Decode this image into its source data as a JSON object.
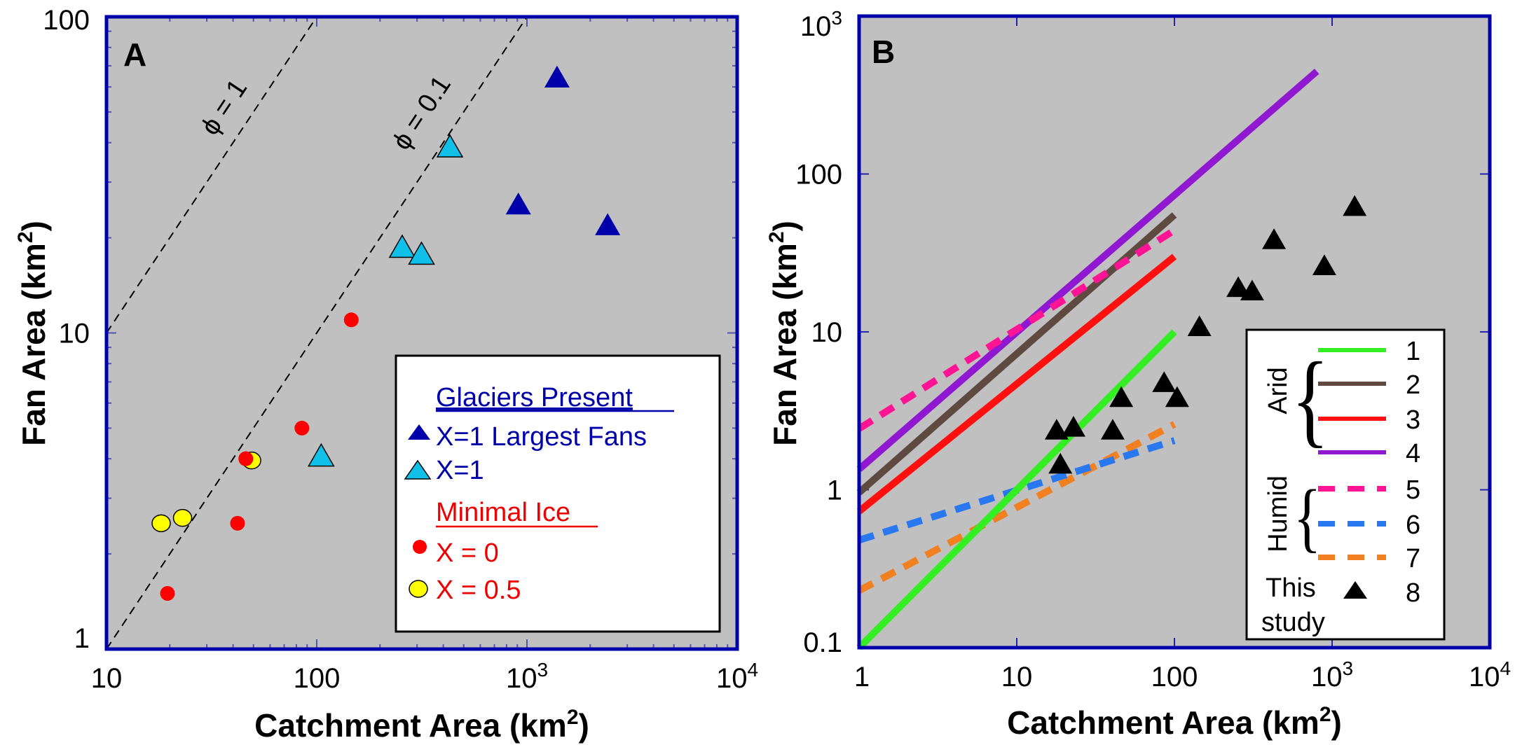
{
  "figure": {
    "panels": [
      "A",
      "B"
    ]
  },
  "chart_data": [
    {
      "panel": "A",
      "type": "scatter",
      "title": "",
      "panel_label": "A",
      "xlabel": "Catchment Area (km",
      "xlabel_sup": "2",
      "xlabel_end": ")",
      "ylabel": "Fan Area (km",
      "ylabel_sup": "2",
      "ylabel_end": ")",
      "xscale": "log",
      "yscale": "log",
      "xlim": [
        10,
        10000
      ],
      "ylim": [
        1,
        100
      ],
      "x_ticks": [
        {
          "value": 10,
          "base": "10",
          "sup": ""
        },
        {
          "value": 100,
          "base": "100",
          "sup": ""
        },
        {
          "value": 1000,
          "base": "10",
          "sup": "3"
        },
        {
          "value": 10000,
          "base": "10",
          "sup": "4"
        }
      ],
      "y_ticks": [
        {
          "value": 1,
          "label": "1"
        },
        {
          "value": 10,
          "label": "10"
        },
        {
          "value": 100,
          "label": "100"
        }
      ],
      "grid": false,
      "background": "#c0c0c0",
      "frame_color": "#0000aa",
      "reference_lines": [
        {
          "name": "phi-1",
          "label": "ϕ = 1",
          "phi": 1,
          "x": [
            10,
            100
          ],
          "y": [
            10,
            100
          ]
        },
        {
          "name": "phi-0.1",
          "label": "ϕ = 0.1",
          "phi": 0.1,
          "x": [
            10,
            1000
          ],
          "y": [
            1,
            100
          ]
        }
      ],
      "series": [
        {
          "name": "X=1 Largest Fans",
          "group": "Glaciers Present",
          "marker": "triangle",
          "color": "#0000aa",
          "edge": "#0000aa",
          "points": [
            [
              1390,
              63
            ],
            [
              910,
              25
            ],
            [
              2420,
              21.5
            ]
          ]
        },
        {
          "name": "X=1",
          "group": "Glaciers Present",
          "marker": "triangle",
          "color": "#10c0e8",
          "edge": "#000000",
          "points": [
            [
              430,
              38
            ],
            [
              255,
              18.3
            ],
            [
              315,
              17.4
            ],
            [
              105,
              4.0
            ]
          ]
        },
        {
          "name": "X = 0",
          "group": "Minimal Ice",
          "marker": "circle",
          "color": "#ff0000",
          "edge": "#ff0000",
          "points": [
            [
              146,
              11.0
            ],
            [
              85,
              5.0
            ],
            [
              46,
              4.0
            ],
            [
              42,
              2.5
            ],
            [
              19.5,
              1.5
            ]
          ]
        },
        {
          "name": "X = 0.5",
          "group": "Minimal Ice",
          "marker": "circle",
          "color": "#ffff00",
          "edge": "#000000",
          "points": [
            [
              49,
              3.95
            ],
            [
              18.2,
              2.5
            ],
            [
              23,
              2.6
            ]
          ]
        }
      ],
      "legend": {
        "placement": "bottom-right",
        "groups": [
          {
            "title": "Glaciers Present",
            "color": "#0000aa",
            "entries": [
              "X=1 Largest Fans",
              "X=1"
            ]
          },
          {
            "title": "Minimal Ice",
            "color": "#ff0000",
            "entries": [
              "X = 0",
              "X = 0.5"
            ]
          }
        ]
      }
    },
    {
      "panel": "B",
      "type": "line",
      "title": "",
      "panel_label": "B",
      "xlabel": "Catchment Area (km",
      "xlabel_sup": "2",
      "xlabel_end": ")",
      "ylabel": "Fan Area (km",
      "ylabel_sup": "2",
      "ylabel_end": ")",
      "xscale": "log",
      "yscale": "log",
      "xlim": [
        1,
        10000
      ],
      "ylim": [
        0.1,
        1000
      ],
      "x_ticks": [
        {
          "value": 1,
          "base": "1",
          "sup": ""
        },
        {
          "value": 10,
          "base": "10",
          "sup": ""
        },
        {
          "value": 100,
          "base": "100",
          "sup": ""
        },
        {
          "value": 1000,
          "base": "10",
          "sup": "3"
        },
        {
          "value": 10000,
          "base": "10",
          "sup": "4"
        }
      ],
      "y_ticks": [
        {
          "value": 0.1,
          "base": "0.1",
          "sup": ""
        },
        {
          "value": 1,
          "base": "1",
          "sup": ""
        },
        {
          "value": 10,
          "base": "10",
          "sup": ""
        },
        {
          "value": 100,
          "base": "100",
          "sup": ""
        },
        {
          "value": 1000,
          "base": "10",
          "sup": "3"
        }
      ],
      "grid": false,
      "background": "#c0c0c0",
      "frame_color": "#0000aa",
      "series": [
        {
          "id": "1",
          "group": "Arid",
          "style": "solid",
          "color": "#33ee22",
          "x": [
            1,
            100
          ],
          "y": [
            0.1,
            10
          ]
        },
        {
          "id": "2",
          "group": "Arid",
          "style": "solid",
          "color": "#5e4a40",
          "x": [
            1,
            100
          ],
          "y": [
            0.96,
            55
          ]
        },
        {
          "id": "3",
          "group": "Arid",
          "style": "solid",
          "color": "#ff1010",
          "x": [
            1,
            100
          ],
          "y": [
            0.73,
            30
          ]
        },
        {
          "id": "4",
          "group": "Arid",
          "style": "solid",
          "color": "#9018d0",
          "x": [
            1,
            800
          ],
          "y": [
            1.35,
            447
          ]
        },
        {
          "id": "5",
          "group": "Humid",
          "style": "dashed",
          "color": "#ff1493",
          "x": [
            1,
            100
          ],
          "y": [
            2.44,
            44
          ]
        },
        {
          "id": "6",
          "group": "Humid",
          "style": "dashed",
          "color": "#2a78f0",
          "x": [
            1,
            100
          ],
          "y": [
            0.48,
            2.05
          ]
        },
        {
          "id": "7",
          "group": "Humid",
          "style": "dashed",
          "color": "#f08020",
          "x": [
            1,
            100
          ],
          "y": [
            0.23,
            2.6
          ]
        },
        {
          "id": "8",
          "group": "This study",
          "style": "marker",
          "marker": "triangle",
          "color": "#000000",
          "points": [
            [
              1390,
              60
            ],
            [
              428,
              37
            ],
            [
              893,
              25.3
            ],
            [
              254,
              18.4
            ],
            [
              311,
              17.5
            ],
            [
              144,
              10.4
            ],
            [
              86,
              4.6
            ],
            [
              46,
              3.7
            ],
            [
              104,
              3.7
            ],
            [
              17.9,
              2.3
            ],
            [
              22.9,
              2.4
            ],
            [
              40.6,
              2.3
            ],
            [
              18.9,
              1.4
            ]
          ]
        }
      ],
      "legend": {
        "placement": "bottom-right",
        "groups": [
          {
            "label": "Arid",
            "entries": [
              "1",
              "2",
              "3",
              "4"
            ]
          },
          {
            "label": "Humid",
            "entries": [
              "5",
              "6",
              "7"
            ]
          },
          {
            "label_line1": "This",
            "label_line2": "study",
            "entries": [
              "8"
            ]
          }
        ]
      }
    }
  ]
}
